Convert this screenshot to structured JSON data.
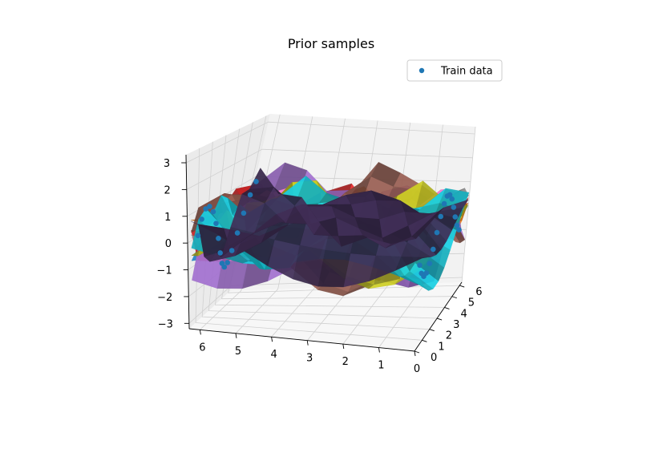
{
  "chart_data": {
    "type": "surface3d",
    "title": "Prior samples",
    "legend": {
      "entries": [
        {
          "label": "Train data",
          "color": "#1f77b4",
          "marker": "circle"
        }
      ],
      "placement": "top-right"
    },
    "axes": {
      "x": {
        "ticks": [
          0,
          1,
          2,
          3,
          4,
          5,
          6
        ],
        "range": [
          0,
          6.3
        ]
      },
      "y": {
        "ticks": [
          0,
          1,
          2,
          3,
          4,
          5,
          6
        ],
        "range": [
          0,
          6.3
        ]
      },
      "z": {
        "ticks": [
          -3,
          -2,
          -1,
          0,
          1,
          2,
          3
        ],
        "range": [
          -3.2,
          3.3
        ]
      }
    },
    "grid": true,
    "view": {
      "elevation_deg": 20,
      "azimuth_deg": 20
    },
    "series": [
      {
        "type": "scatter",
        "color": "#1f77b4"
      },
      {
        "type": "surface",
        "color": "#1f77b4"
      },
      {
        "type": "surface",
        "color": "#ff7f0e"
      },
      {
        "type": "surface",
        "color": "#d62728"
      },
      {
        "type": "surface",
        "color": "#9467bd"
      },
      {
        "type": "surface",
        "color": "#8c564b"
      },
      {
        "type": "surface",
        "color": "#e377c2"
      },
      {
        "type": "surface",
        "color": "#7f7f7f"
      },
      {
        "type": "surface",
        "color": "#bcbd22"
      },
      {
        "type": "surface",
        "color": "#17becf"
      },
      {
        "type": "surface",
        "color": "#3b2a4f"
      }
    ]
  }
}
